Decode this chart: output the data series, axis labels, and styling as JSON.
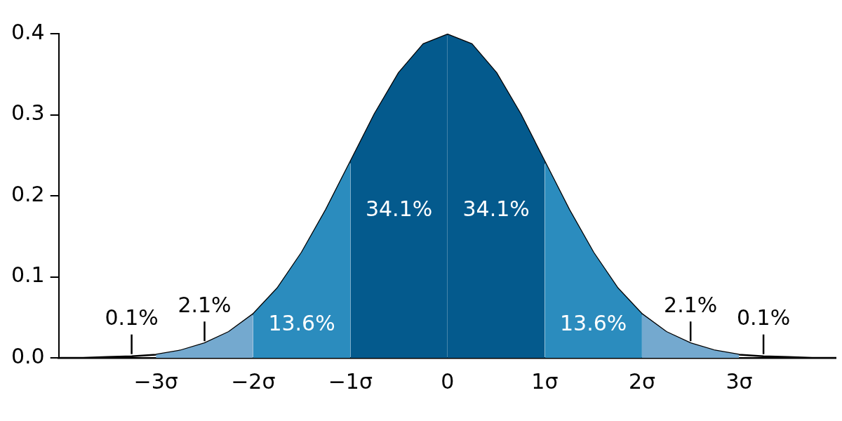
{
  "chart_data": {
    "type": "line",
    "xlim": [
      -4,
      4
    ],
    "ylim": [
      0,
      0.4
    ],
    "xticks": [
      {
        "value": -3,
        "label": "−3σ"
      },
      {
        "value": -2,
        "label": "−2σ"
      },
      {
        "value": -1,
        "label": "−1σ"
      },
      0,
      {
        "value": 1,
        "label": "1σ"
      },
      {
        "value": 2,
        "label": "2σ"
      },
      {
        "value": 3,
        "label": "3σ"
      }
    ],
    "yticks": [
      {
        "value": 0,
        "label": "0.0"
      },
      0.1,
      0.2,
      0.3,
      0.4
    ],
    "legend": false,
    "marker": "none",
    "line_style": "solid",
    "series": [
      {
        "type": "area",
        "name": "2.1%",
        "color": "#74a9cf",
        "x": [
          -3,
          -2.75,
          -2.5,
          -2.25,
          -2
        ],
        "values": [
          0.004,
          0.009,
          0.018,
          0.032,
          0.054
        ]
      },
      {
        "type": "area",
        "name": "13.6%",
        "color": "#2b8cbe",
        "x": [
          -2,
          -1.75,
          -1.5,
          -1.25,
          -1
        ],
        "values": [
          0.054,
          0.086,
          0.13,
          0.183,
          0.242
        ]
      },
      {
        "type": "area",
        "name": "34.1%",
        "color": "#045a8d",
        "x": [
          -1,
          -0.75,
          -0.5,
          -0.25,
          0
        ],
        "values": [
          0.242,
          0.301,
          0.352,
          0.387,
          0.399
        ]
      },
      {
        "type": "area",
        "name": "34.1%",
        "color": "#045a8d",
        "x": [
          0,
          0.25,
          0.5,
          0.75,
          1
        ],
        "values": [
          0.399,
          0.387,
          0.352,
          0.301,
          0.242
        ]
      },
      {
        "type": "area",
        "name": "13.6%",
        "color": "#2b8cbe",
        "x": [
          1,
          1.25,
          1.5,
          1.75,
          2
        ],
        "values": [
          0.242,
          0.183,
          0.13,
          0.086,
          0.054
        ]
      },
      {
        "type": "area",
        "name": "2.1%",
        "color": "#74a9cf",
        "x": [
          2,
          2.25,
          2.5,
          2.75,
          3
        ],
        "values": [
          0.054,
          0.032,
          0.018,
          0.009,
          0.004
        ]
      },
      {
        "type": "line",
        "color": "#000000",
        "x": [
          -4,
          -3.75,
          -3.5,
          -3.25,
          -3,
          -2.75,
          -2.5,
          -2.25,
          -2,
          -1.75,
          -1.5,
          -1.25,
          -1,
          -0.75,
          -0.5,
          -0.25,
          0,
          0.25,
          0.5,
          0.75,
          1,
          1.25,
          1.5,
          1.75,
          2,
          2.25,
          2.5,
          2.75,
          3,
          3.25,
          3.5,
          3.75,
          4
        ],
        "values": [
          0,
          0,
          0.001,
          0.002,
          0.004,
          0.009,
          0.018,
          0.032,
          0.054,
          0.086,
          0.13,
          0.183,
          0.242,
          0.301,
          0.352,
          0.387,
          0.399,
          0.387,
          0.352,
          0.301,
          0.242,
          0.183,
          0.13,
          0.086,
          0.054,
          0.032,
          0.018,
          0.009,
          0.004,
          0.002,
          0.001,
          0,
          0
        ]
      }
    ],
    "annotations": [
      {
        "text": "0.1%",
        "x": -3.25,
        "y": 0.002
      },
      {
        "text": "0.1%",
        "x": 3.25,
        "y": 0.002
      }
    ]
  }
}
